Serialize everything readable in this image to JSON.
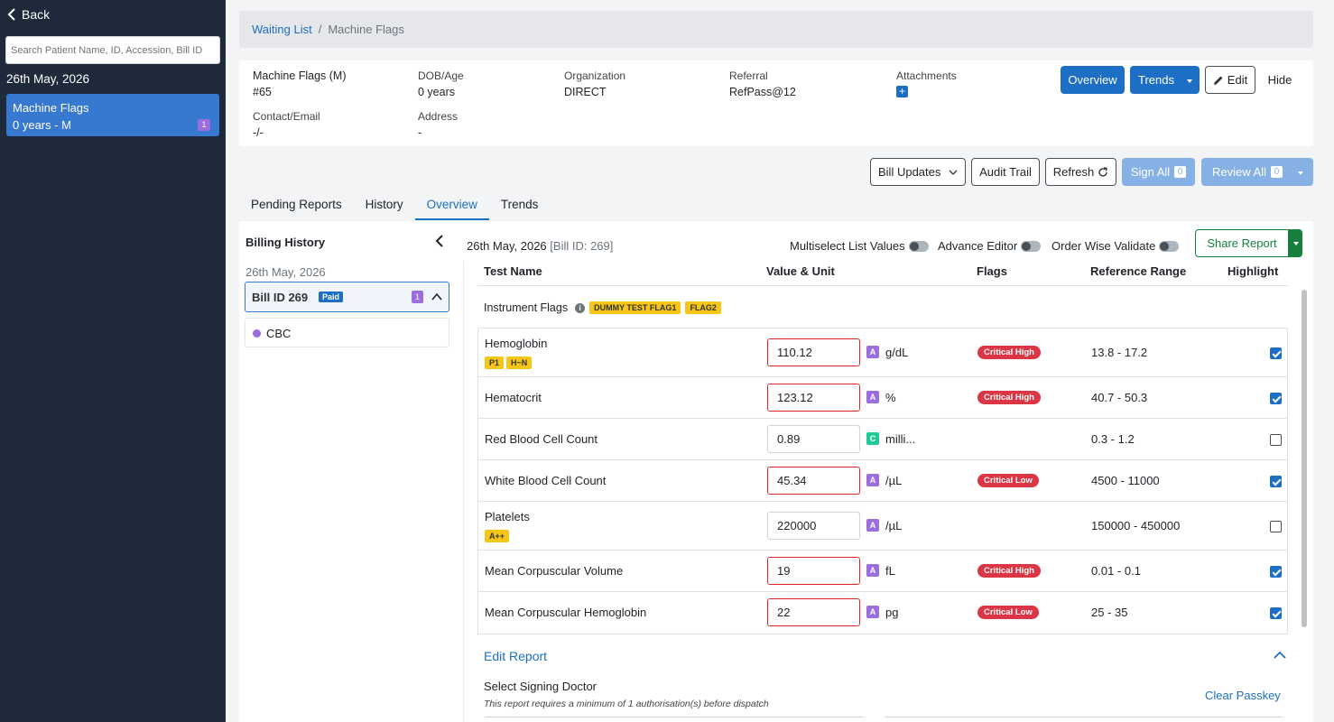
{
  "sidebar": {
    "back_label": "Back",
    "search_placeholder": "Search Patient Name, ID, Accession, Bill ID",
    "date": "26th May, 2026",
    "patient": {
      "name": "Machine Flags",
      "age_gender": "0 years - M",
      "count": "1"
    }
  },
  "breadcrumb": {
    "link": "Waiting List",
    "separator": "/",
    "current": "Machine Flags"
  },
  "patient": {
    "name_label": "Machine Flags (M)",
    "id": "#65",
    "dob_label": "DOB/Age",
    "dob_value": "0 years",
    "org_label": "Organization",
    "org_value": "DIRECT",
    "ref_label": "Referral",
    "ref_value": "RefPass@12",
    "attach_label": "Attachments",
    "attach_icon": "+",
    "contact_label": "Contact/Email",
    "contact_value": "-/-",
    "address_label": "Address",
    "address_value": "-"
  },
  "header_buttons": {
    "overview": "Overview",
    "trends": "Trends",
    "edit": "Edit",
    "hide": "Hide"
  },
  "actions": {
    "bill_updates": "Bill Updates",
    "audit_trail": "Audit Trail",
    "refresh": "Refresh",
    "sign_all": "Sign All",
    "sign_all_count": "0",
    "review_all": "Review All",
    "review_all_count": "0"
  },
  "tabs": [
    {
      "label": "Pending Reports"
    },
    {
      "label": "History"
    },
    {
      "label": "Overview"
    },
    {
      "label": "Trends"
    }
  ],
  "billing": {
    "title": "Billing History",
    "date": "26th May, 2026",
    "bill_label": "Bill ID 269",
    "paid": "Paid",
    "count": "1",
    "test": "CBC"
  },
  "report": {
    "date": "26th May, 2026",
    "bill_id": "[Bill ID: 269]",
    "toggles": {
      "multiselect": "Multiselect List Values",
      "advance": "Advance Editor",
      "order_wise": "Order Wise Validate"
    },
    "share": "Share Report",
    "columns": {
      "test": "Test Name",
      "value": "Value & Unit",
      "flags": "Flags",
      "range": "Reference Range",
      "highlight": "Highlight"
    },
    "instrument_flags_label": "Instrument Flags",
    "instrument_flags": [
      "DUMMY TEST FLAG1",
      "FLAG2"
    ],
    "rows": [
      {
        "name": "Hemoglobin",
        "tags": [
          "P1",
          "H~N"
        ],
        "value": "110.12",
        "method": "A",
        "unit": "g/dL",
        "flag": "Critical High",
        "range": "13.8 - 17.2",
        "highlight": true
      },
      {
        "name": "Hematocrit",
        "tags": [],
        "value": "123.12",
        "method": "A",
        "unit": "%",
        "flag": "Critical High",
        "range": "40.7 - 50.3",
        "highlight": true
      },
      {
        "name": "Red Blood Cell Count",
        "tags": [],
        "value": "0.89",
        "method": "C",
        "unit": "milli...",
        "flag": "",
        "range": "0.3 - 1.2",
        "highlight": false
      },
      {
        "name": "White Blood Cell Count",
        "tags": [],
        "value": "45.34",
        "method": "A",
        "unit": "/µL",
        "flag": "Critical Low",
        "range": "4500 - 11000",
        "highlight": true
      },
      {
        "name": "Platelets",
        "tags": [
          "A++"
        ],
        "value": "220000",
        "method": "A",
        "unit": "/µL",
        "flag": "",
        "range": "150000 - 450000",
        "highlight": false
      },
      {
        "name": "Mean Corpuscular Volume",
        "tags": [],
        "value": "19",
        "method": "A",
        "unit": "fL",
        "flag": "Critical High",
        "range": "0.01 - 0.1",
        "highlight": true
      },
      {
        "name": "Mean Corpuscular Hemoglobin",
        "tags": [],
        "value": "22",
        "method": "A",
        "unit": "pg",
        "flag": "Critical Low",
        "range": "25 - 35",
        "highlight": true
      }
    ],
    "edit_report": "Edit Report",
    "signing_label": "Select Signing Doctor",
    "signing_note": "This report requires a minimum of 1 authorisation(s) before dispatch",
    "clear_passkey": "Clear Passkey"
  },
  "colors": {
    "primary": "#1d6fc5",
    "sidebar": "#1e293b",
    "critical": "#dc3545",
    "share": "#15803d",
    "flag_yellow": "#f5c518",
    "method_a": "#9b6ddf",
    "method_c": "#20c997"
  },
  "icons": {
    "back": "chevron-left-icon",
    "refresh": "refresh-icon",
    "edit": "pencil-icon",
    "info": "info-icon"
  }
}
